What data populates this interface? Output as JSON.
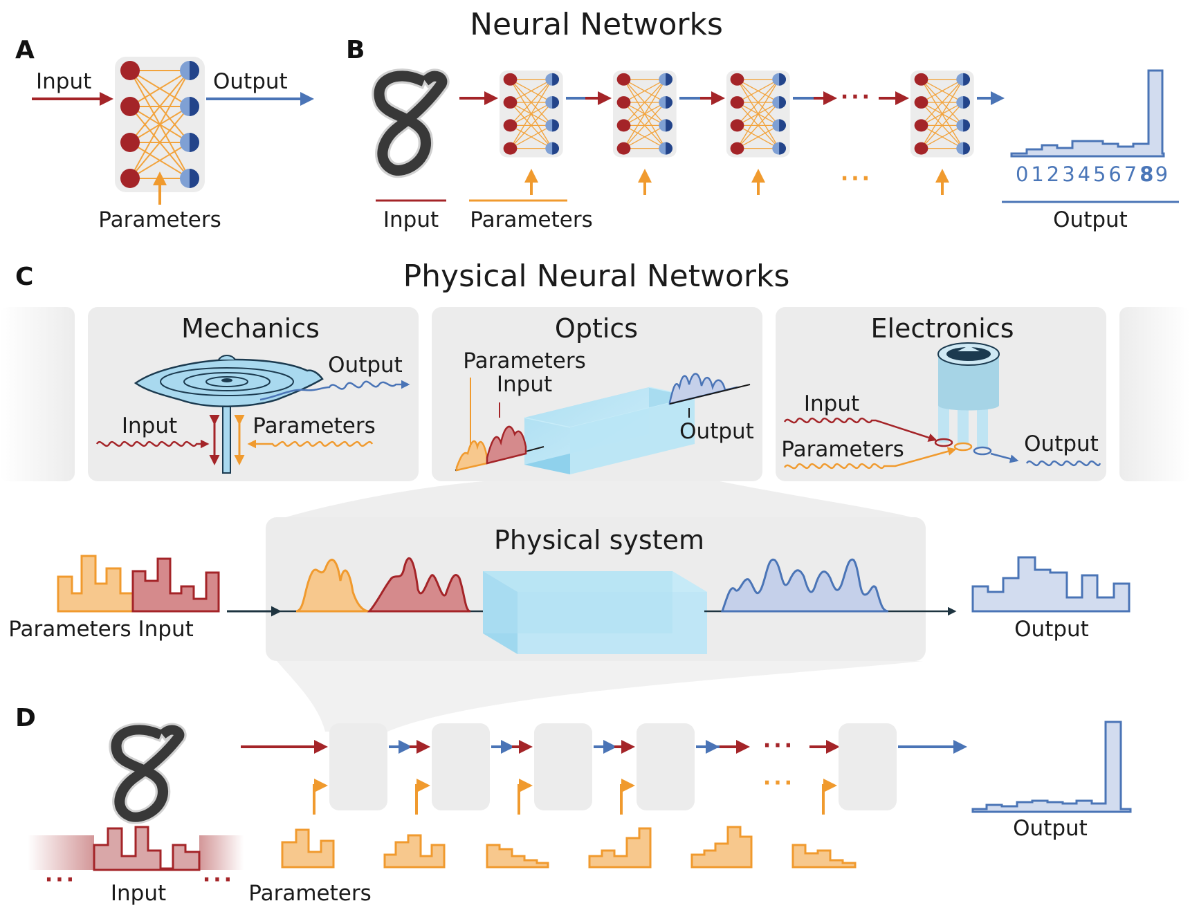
{
  "colors": {
    "input_red": "#a42428",
    "output_blue": "#4a74b6",
    "param_orange": "#f09a2e",
    "box_gray": "#ececec",
    "crystal_blue": "#aee0f2"
  },
  "panels": {
    "a": "A",
    "b": "B",
    "c": "C",
    "d": "D"
  },
  "headings": {
    "nn": "Neural Networks",
    "pnn": "Physical Neural Networks"
  },
  "panel_a": {
    "input": "Input",
    "output": "Output",
    "parameters": "Parameters"
  },
  "panel_b": {
    "input": "Input",
    "parameters": "Parameters",
    "output": "Output",
    "ellipsis": "···",
    "digits": [
      "0",
      "1",
      "2",
      "3",
      "4",
      "5",
      "6",
      "7",
      "8",
      "9"
    ],
    "highlight_digit": "8"
  },
  "panel_c": {
    "mechanics": {
      "title": "Mechanics",
      "output": "Output",
      "input": "Input",
      "parameters": "Parameters"
    },
    "optics": {
      "title": "Optics",
      "parameters": "Parameters",
      "input": "Input",
      "output": "Output"
    },
    "electronics": {
      "title": "Electronics",
      "input": "Input",
      "parameters": "Parameters",
      "output": "Output"
    },
    "physical_system": {
      "title": "Physical system",
      "left_label": "Parameters Input",
      "right_label": "Output"
    }
  },
  "panel_d": {
    "input": "Input",
    "parameters": "Parameters",
    "output": "Output",
    "ellipsis": "···"
  },
  "icons": [
    "arrow-icon",
    "network-icon",
    "digit-image-icon",
    "histogram-icon",
    "crystal-icon",
    "membrane-icon",
    "chip-icon",
    "wave-icon"
  ]
}
